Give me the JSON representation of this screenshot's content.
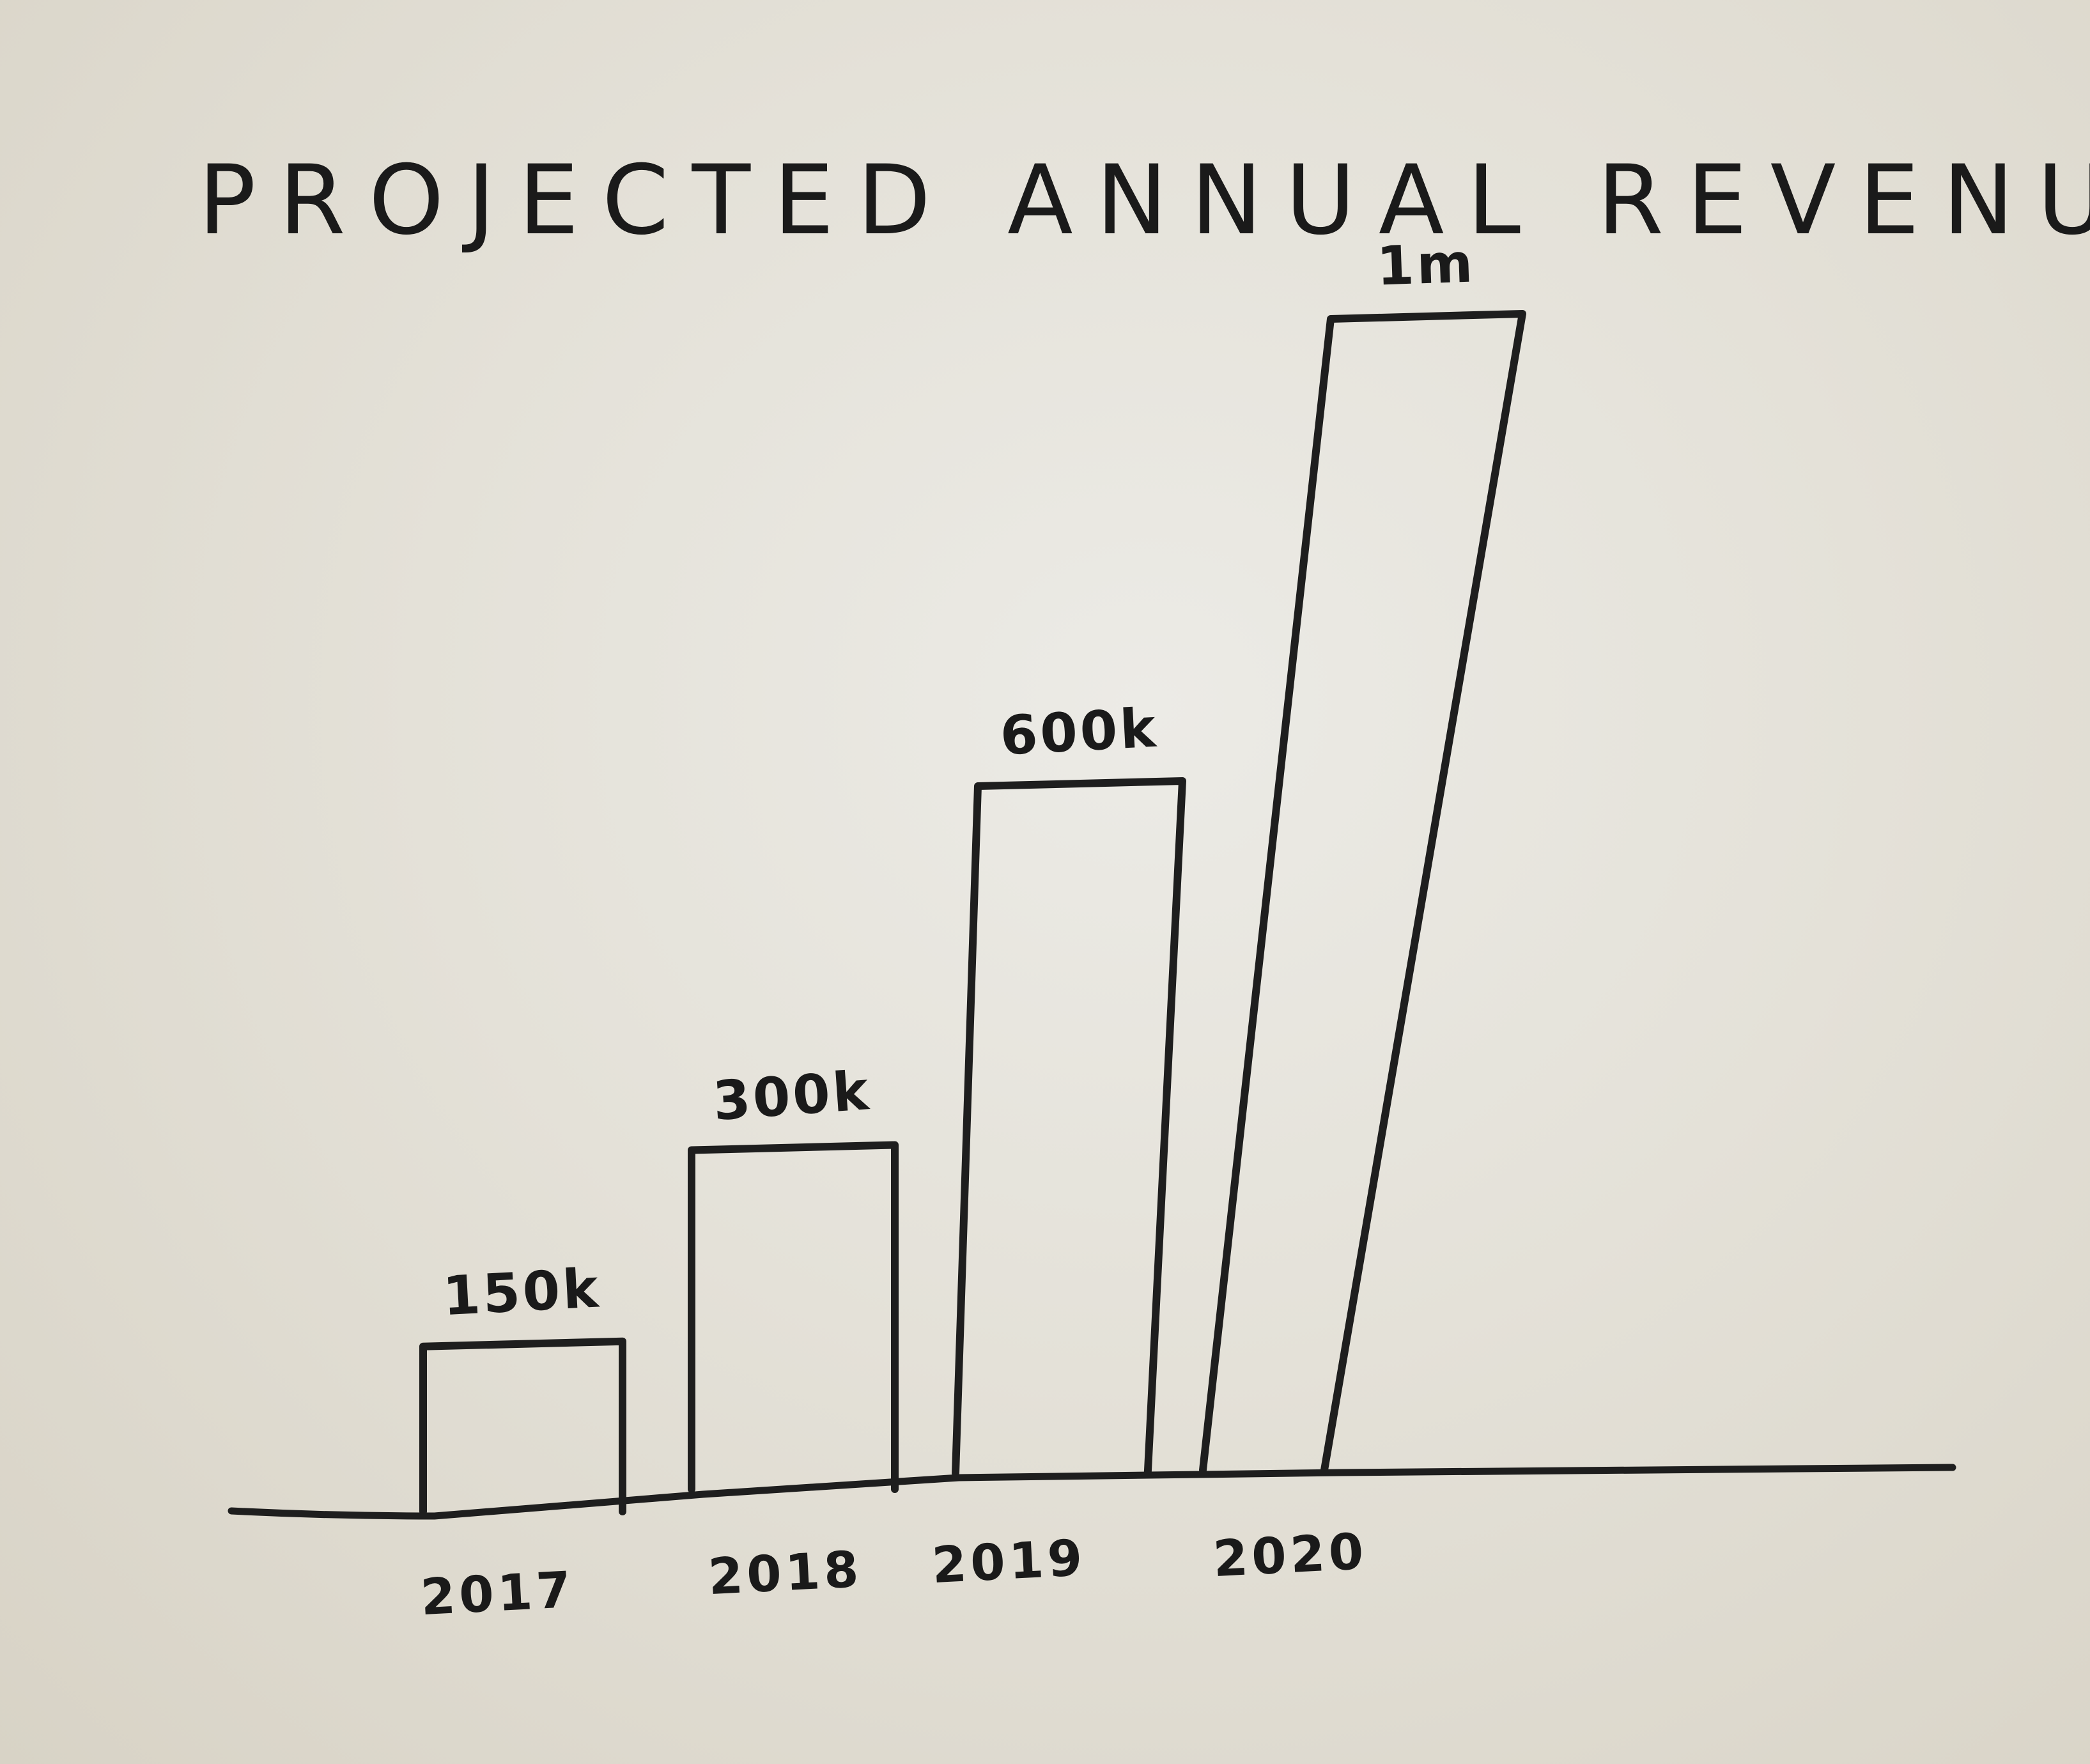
{
  "chart_data": {
    "type": "bar",
    "title": "PROJECTED ANNUAL REVENUE",
    "categories": [
      "2017",
      "2018",
      "2019",
      "2020"
    ],
    "values": [
      150000,
      300000,
      600000,
      1000000
    ],
    "value_labels": [
      "150k",
      "300k",
      "600k",
      "1m"
    ],
    "xlabel": "",
    "ylabel": "",
    "ylim": [
      0,
      1000000
    ],
    "grid": false,
    "legend": "none",
    "style": "hand-drawn outline bars, black ink on paper"
  }
}
